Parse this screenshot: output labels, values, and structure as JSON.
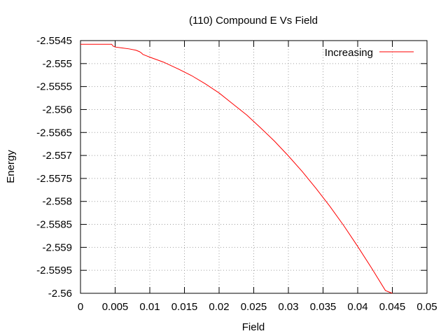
{
  "chart_data": {
    "type": "line",
    "title": "(110) Compound E Vs Field",
    "xlabel": "Field",
    "ylabel": "Energy",
    "xlim": [
      0,
      0.05
    ],
    "ylim": [
      -2.56,
      -2.5545
    ],
    "xticks": [
      0,
      0.005,
      0.01,
      0.015,
      0.02,
      0.025,
      0.03,
      0.035,
      0.04,
      0.045,
      0.05
    ],
    "yticks": [
      -2.5545,
      -2.555,
      -2.5555,
      -2.556,
      -2.5565,
      -2.557,
      -2.5575,
      -2.558,
      -2.5585,
      -2.559,
      -2.5595,
      -2.56
    ],
    "grid": true,
    "legend_position": "top-right",
    "series": [
      {
        "name": "Increasing",
        "color": "#ff0000",
        "x": [
          0,
          0.001,
          0.002,
          0.003,
          0.004,
          0.0045,
          0.0047,
          0.005,
          0.006,
          0.007,
          0.008,
          0.0085,
          0.0088,
          0.009,
          0.0095,
          0.01,
          0.012,
          0.014,
          0.016,
          0.018,
          0.02,
          0.022,
          0.024,
          0.026,
          0.028,
          0.03,
          0.032,
          0.034,
          0.036,
          0.038,
          0.04,
          0.042,
          0.044,
          0.045
        ],
        "y": [
          -2.55458,
          -2.55458,
          -2.55458,
          -2.55458,
          -2.55458,
          -2.55458,
          -2.55462,
          -2.55464,
          -2.55466,
          -2.55468,
          -2.55471,
          -2.55474,
          -2.55477,
          -2.5548,
          -2.55483,
          -2.55486,
          -2.55497,
          -2.55511,
          -2.55526,
          -2.55544,
          -2.55564,
          -2.55588,
          -2.55612,
          -2.5564,
          -2.55669,
          -2.55701,
          -2.55735,
          -2.55772,
          -2.55811,
          -2.55853,
          -2.55898,
          -2.55945,
          -2.55994,
          -2.56002
        ]
      }
    ]
  }
}
